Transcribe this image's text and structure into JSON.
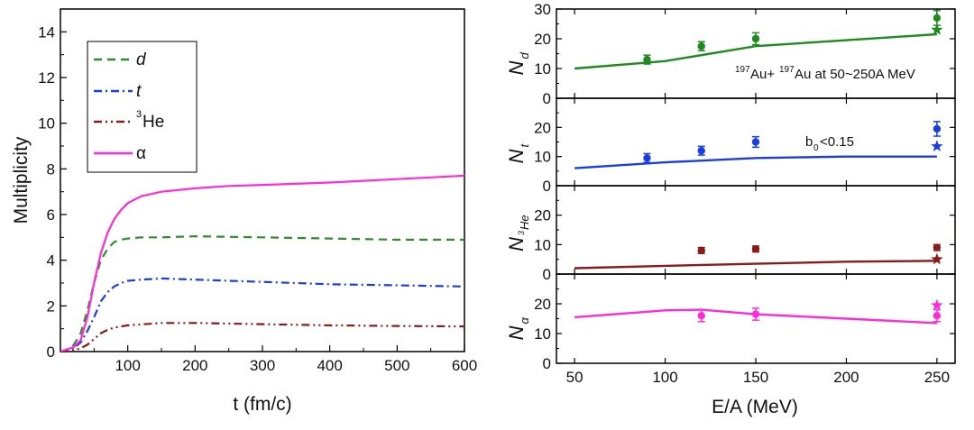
{
  "chart_data": [
    {
      "type": "line",
      "id": "left",
      "xlabel": "t (fm/c)",
      "ylabel": "Multiplicity",
      "xlim": [
        0,
        600
      ],
      "ylim": [
        0,
        15
      ],
      "xticks": [
        100,
        200,
        300,
        400,
        500,
        600
      ],
      "yticks": [
        0,
        2,
        4,
        6,
        8,
        10,
        12,
        14
      ],
      "legend_position": "top-left",
      "series": [
        {
          "name": "d",
          "label": "d",
          "label_sup": "",
          "italic": true,
          "color": "#2e8b2e",
          "dash": "9,6",
          "x": [
            0,
            10,
            20,
            30,
            40,
            50,
            60,
            70,
            80,
            90,
            100,
            120,
            150,
            200,
            300,
            400,
            500,
            600
          ],
          "y": [
            0,
            0.1,
            0.3,
            0.8,
            1.8,
            3.0,
            4.0,
            4.5,
            4.8,
            4.9,
            4.95,
            5.0,
            5.0,
            5.05,
            5.0,
            4.95,
            4.9,
            4.9
          ]
        },
        {
          "name": "t",
          "label": "t",
          "label_sup": "",
          "italic": true,
          "color": "#1a3fe0",
          "dash": "9,4,2,4",
          "x": [
            0,
            10,
            20,
            30,
            40,
            50,
            60,
            70,
            80,
            90,
            100,
            120,
            150,
            200,
            300,
            400,
            500,
            600
          ],
          "y": [
            0,
            0.05,
            0.15,
            0.4,
            0.9,
            1.5,
            2.2,
            2.6,
            2.85,
            3.0,
            3.1,
            3.15,
            3.2,
            3.15,
            3.05,
            2.95,
            2.9,
            2.85
          ]
        },
        {
          "name": "3He",
          "label": "He",
          "label_sup": "3",
          "italic": false,
          "color": "#8b1a1a",
          "dash": "9,4,2,4,2,4",
          "x": [
            0,
            10,
            20,
            30,
            40,
            50,
            60,
            70,
            80,
            90,
            100,
            150,
            200,
            300,
            400,
            500,
            600
          ],
          "y": [
            0,
            0.02,
            0.05,
            0.15,
            0.3,
            0.55,
            0.8,
            0.95,
            1.05,
            1.1,
            1.15,
            1.25,
            1.25,
            1.2,
            1.15,
            1.12,
            1.1
          ]
        },
        {
          "name": "alpha",
          "label": "α",
          "label_sup": "",
          "italic": false,
          "color": "#ff2bd9",
          "dash": "",
          "x": [
            0,
            10,
            20,
            30,
            40,
            50,
            60,
            70,
            80,
            90,
            100,
            120,
            150,
            200,
            250,
            300,
            400,
            500,
            600
          ],
          "y": [
            0,
            0.1,
            0.2,
            0.5,
            1.5,
            3.0,
            4.3,
            5.2,
            5.8,
            6.2,
            6.5,
            6.8,
            7.0,
            7.15,
            7.25,
            7.3,
            7.4,
            7.55,
            7.7
          ]
        }
      ]
    },
    {
      "type": "scatter+line",
      "id": "right",
      "xlabel": "E/A (MeV)",
      "xlim": [
        40,
        260
      ],
      "xticks": [
        50,
        100,
        150,
        200,
        250
      ],
      "ylim": [
        0,
        30
      ],
      "annotation": {
        "sup1": "197",
        "text1": "Au+",
        "sup2": "197",
        "text2": "Au at 50~250A MeV"
      },
      "annotation2": "b",
      "annotation2_sub": "0",
      "annotation2_rest": "<0.15",
      "panels": [
        {
          "ylabel": "N",
          "ylabel_sub": "d",
          "sub_sup": "",
          "color": "#1f8a1f",
          "yticks": [
            0,
            10,
            20,
            30
          ],
          "line_x": [
            50,
            100,
            150,
            200,
            250
          ],
          "line_y": [
            10,
            12.5,
            17.5,
            19.5,
            21.5
          ],
          "points_x": [
            90,
            120,
            150,
            250
          ],
          "points_y": [
            13,
            17.5,
            20,
            27
          ],
          "errors": [
            1.5,
            1.5,
            2,
            2.5
          ],
          "stars_x": [
            250
          ],
          "stars_y": [
            23
          ]
        },
        {
          "ylabel": "N",
          "ylabel_sub": "t",
          "sub_sup": "",
          "color": "#1a3fe0",
          "yticks": [
            0,
            10,
            20
          ],
          "line_x": [
            50,
            100,
            150,
            200,
            250
          ],
          "line_y": [
            6,
            8,
            9.5,
            10,
            10
          ],
          "points_x": [
            90,
            120,
            150,
            250
          ],
          "points_y": [
            9.5,
            12,
            15,
            19.5
          ],
          "errors": [
            1.5,
            1.5,
            1.8,
            2.5
          ],
          "stars_x": [
            250
          ],
          "stars_y": [
            13.5
          ]
        },
        {
          "ylabel": "N",
          "ylabel_sub": "He",
          "sub_sup": "3",
          "color": "#8b1a1a",
          "yticks": [
            0,
            10,
            20
          ],
          "line_x": [
            50,
            100,
            150,
            200,
            250
          ],
          "line_y": [
            2,
            2.8,
            3.5,
            4.2,
            4.5
          ],
          "points_x": [
            120,
            150,
            250
          ],
          "points_y": [
            8,
            8.5,
            9
          ],
          "errors": [
            1,
            1,
            1
          ],
          "stars_x": [
            250
          ],
          "stars_y": [
            5
          ]
        },
        {
          "ylabel": "N",
          "ylabel_sub": "α",
          "sub_sup": "",
          "color": "#ff2bd9",
          "yticks": [
            0,
            10,
            20
          ],
          "line_x": [
            50,
            100,
            120,
            150,
            200,
            250
          ],
          "line_y": [
            15.5,
            17.8,
            18,
            16.5,
            15,
            13.5
          ],
          "points_x": [
            120,
            150,
            250
          ],
          "points_y": [
            16,
            16.5,
            16
          ],
          "errors": [
            2,
            2,
            2
          ],
          "stars_x": [
            250
          ],
          "stars_y": [
            19.5
          ]
        }
      ]
    }
  ]
}
